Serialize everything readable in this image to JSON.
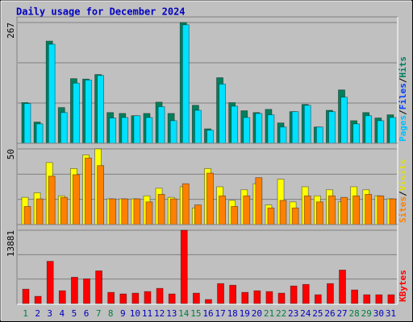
{
  "title": "Daily usage for December 2024",
  "x": {
    "categories": [
      "1",
      "2",
      "3",
      "4",
      "5",
      "6",
      "7",
      "8",
      "9",
      "10",
      "11",
      "12",
      "13",
      "14",
      "15",
      "16",
      "17",
      "18",
      "19",
      "20",
      "21",
      "22",
      "23",
      "24",
      "25",
      "26",
      "27",
      "28",
      "29",
      "30",
      "31"
    ],
    "weekend": [
      0,
      6,
      7,
      13,
      14,
      20,
      21,
      27,
      28
    ],
    "weekend_color": "#008040",
    "color": "#0000c0"
  },
  "chart_data": [
    {
      "type": "bar",
      "ylim": [
        0,
        267
      ],
      "yticks": [
        267
      ],
      "grid_divisions": 3,
      "legend_separator": "/",
      "legend": [
        {
          "text": "Pages",
          "color": "#00c0ff"
        },
        {
          "text": "Files",
          "color": "#0040ff"
        },
        {
          "text": "Hits",
          "color": "#008060"
        }
      ],
      "series": [
        {
          "name": "Hits",
          "color": "#00805c",
          "values": [
            90,
            47,
            226,
            79,
            143,
            142,
            152,
            68,
            66,
            61,
            66,
            91,
            66,
            267,
            84,
            32,
            145,
            90,
            72,
            68,
            75,
            45,
            70,
            86,
            36,
            73,
            118,
            50,
            68,
            56,
            63
          ]
        },
        {
          "name": "Files",
          "color": "#00e0ff",
          "values": [
            88,
            43,
            219,
            68,
            133,
            140,
            150,
            56,
            57,
            61,
            57,
            81,
            50,
            262,
            73,
            29,
            131,
            82,
            57,
            66,
            63,
            36,
            70,
            84,
            36,
            70,
            102,
            43,
            61,
            50,
            57
          ]
        }
      ]
    },
    {
      "type": "bar",
      "ylim": [
        0,
        50
      ],
      "yticks": [
        50
      ],
      "grid_divisions": 3,
      "legend_separator": "/",
      "legend": [
        {
          "text": "Sites",
          "color": "#ff8000"
        },
        {
          "text": "Visits",
          "color": "#e0e000"
        }
      ],
      "series": [
        {
          "name": "Visits",
          "color": "#ffff00",
          "values": [
            18,
            21,
            41,
            19,
            37,
            46,
            50,
            17,
            17,
            17,
            19,
            24,
            18,
            25,
            11,
            37,
            25,
            16,
            23,
            27,
            13,
            30,
            15,
            25,
            19,
            23,
            15,
            25,
            23,
            19,
            17
          ]
        },
        {
          "name": "Sites",
          "color": "#ff8000",
          "values": [
            12,
            17,
            32,
            18,
            33,
            44,
            39,
            17,
            17,
            17,
            15,
            20,
            17,
            27,
            13,
            34,
            19,
            12,
            19,
            31,
            11,
            16,
            11,
            19,
            15,
            19,
            18,
            19,
            20,
            19,
            17
          ]
        }
      ]
    },
    {
      "type": "bar",
      "ylim": [
        0,
        13881
      ],
      "yticks": [
        13881
      ],
      "grid_divisions": 3,
      "legend": [
        {
          "text": "KBytes",
          "color": "#ff0000"
        }
      ],
      "series": [
        {
          "name": "KBytes",
          "color": "#ff0000",
          "values": [
            2716,
            1358,
            7997,
            2414,
            4979,
            4677,
            6186,
            2112,
            1811,
            1961,
            2263,
            2867,
            1811,
            13881,
            1961,
            754,
            3772,
            3470,
            2112,
            2414,
            2263,
            1961,
            3319,
            3621,
            1660,
            3772,
            6337,
            2565,
            1660,
            1660,
            1660
          ]
        }
      ]
    }
  ]
}
